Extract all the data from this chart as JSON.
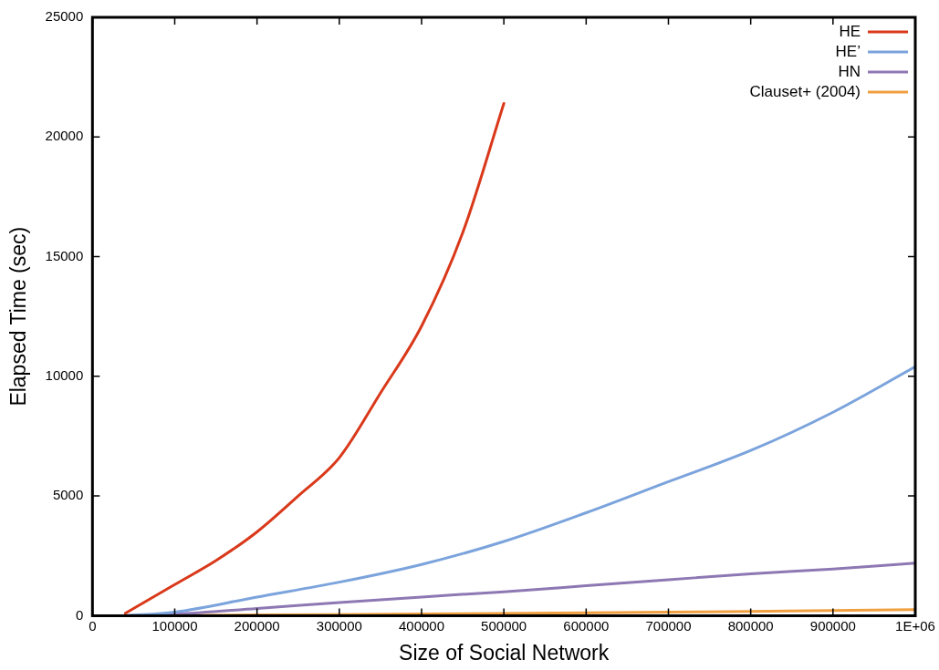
{
  "chart_data": {
    "type": "line",
    "xlabel": "Size of Social Network",
    "ylabel": "Elapsed Time (sec)",
    "xlim": [
      0,
      1000000
    ],
    "xticks": [
      0,
      100000,
      200000,
      300000,
      400000,
      500000,
      600000,
      700000,
      800000,
      900000,
      {
        "value": 1000000,
        "label": "1E+06"
      }
    ],
    "ylim": [
      0,
      25000
    ],
    "yticks": [
      0,
      5000,
      10000,
      15000,
      20000,
      25000
    ],
    "grid": false,
    "legend": "top right",
    "marker": "none",
    "line_style": "solid",
    "series": [
      {
        "name": "HE",
        "color": "#d9391a",
        "x": [
          40000,
          100000,
          150000,
          200000,
          250000,
          300000,
          350000,
          400000,
          450000,
          500000
        ],
        "values": [
          100,
          1300,
          2300,
          3500,
          5000,
          6600,
          9300,
          12100,
          16000,
          21400
        ]
      },
      {
        "name": "HE’",
        "color": "#7ba3dc",
        "x": [
          40000,
          100000,
          200000,
          300000,
          400000,
          500000,
          600000,
          700000,
          800000,
          900000,
          1000000
        ],
        "values": [
          0,
          150,
          780,
          1400,
          2140,
          3100,
          4300,
          5600,
          6900,
          8500,
          10400
        ]
      },
      {
        "name": "HN",
        "color": "#8e78b3",
        "x": [
          40000,
          100000,
          200000,
          300000,
          400000,
          500000,
          600000,
          700000,
          800000,
          900000,
          1000000
        ],
        "values": [
          0,
          60,
          300,
          550,
          780,
          1000,
          1250,
          1500,
          1750,
          1950,
          2200
        ]
      },
      {
        "name": "Clauset+ (2004)",
        "color": "#f0a040",
        "x": [
          40000,
          200000,
          400000,
          600000,
          800000,
          1000000
        ],
        "values": [
          0,
          30,
          70,
          120,
          180,
          250
        ]
      }
    ]
  }
}
